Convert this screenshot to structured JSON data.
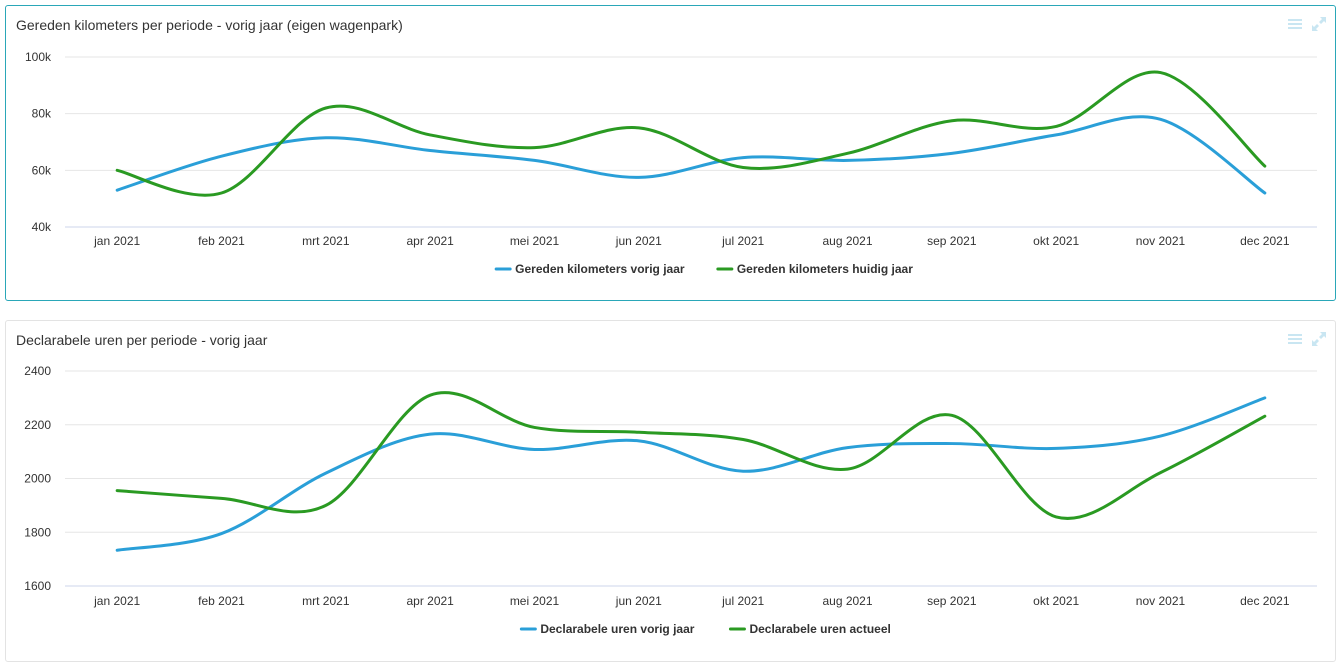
{
  "panels": [
    {
      "title": "Gereden kilometers per periode - vorig jaar (eigen wagenpark)"
    },
    {
      "title": "Declarabele uren per periode - vorig jaar"
    }
  ],
  "icons": {
    "menu": "hamburger-menu-icon",
    "fullscreen": "expand-icon"
  },
  "colors": {
    "blue": "#2a9fd8",
    "green": "#2a9a22",
    "grid": "#e6e6e6",
    "icon": "#c9e6f2"
  },
  "chart_data": [
    {
      "type": "line",
      "title": "Gereden kilometers per periode - vorig jaar (eigen wagenpark)",
      "categories": [
        "jan 2021",
        "feb 2021",
        "mrt 2021",
        "apr 2021",
        "mei 2021",
        "jun 2021",
        "jul 2021",
        "aug 2021",
        "sep 2021",
        "okt 2021",
        "nov 2021",
        "dec 2021"
      ],
      "ylim": [
        40000,
        100000
      ],
      "yticks": [
        40000,
        60000,
        80000,
        100000
      ],
      "ytick_labels": [
        "40k",
        "60k",
        "80k",
        "100k"
      ],
      "grid": true,
      "legend": "bottom-center",
      "series": [
        {
          "name": "Gereden kilometers vorig jaar",
          "color": "#2a9fd8",
          "values": [
            53000,
            65000,
            71500,
            67000,
            63500,
            57500,
            64500,
            63500,
            66000,
            72500,
            78000,
            52000
          ]
        },
        {
          "name": "Gereden kilometers huidig jaar",
          "color": "#2a9a22",
          "values": [
            60000,
            52000,
            82000,
            72500,
            68000,
            75000,
            61000,
            66000,
            77500,
            75500,
            94500,
            61500
          ]
        }
      ]
    },
    {
      "type": "line",
      "title": "Declarabele uren per periode - vorig jaar",
      "categories": [
        "jan 2021",
        "feb 2021",
        "mrt 2021",
        "apr 2021",
        "mei 2021",
        "jun 2021",
        "jul 2021",
        "aug 2021",
        "sep 2021",
        "okt 2021",
        "nov 2021",
        "dec 2021"
      ],
      "ylim": [
        1600,
        2400
      ],
      "yticks": [
        1600,
        1800,
        2000,
        2200,
        2400
      ],
      "ytick_labels": [
        "1600",
        "1800",
        "2000",
        "2200",
        "2400"
      ],
      "grid": true,
      "legend": "bottom-center",
      "series": [
        {
          "name": "Declarabele uren vorig jaar",
          "color": "#2a9fd8",
          "values": [
            1733,
            1795,
            2020,
            2165,
            2108,
            2140,
            2027,
            2115,
            2130,
            2112,
            2158,
            2300
          ]
        },
        {
          "name": "Declarabele uren actueel",
          "color": "#2a9a22",
          "values": [
            1955,
            1926,
            1900,
            2310,
            2190,
            2172,
            2145,
            2035,
            2235,
            1857,
            2022,
            2232
          ]
        }
      ]
    }
  ]
}
